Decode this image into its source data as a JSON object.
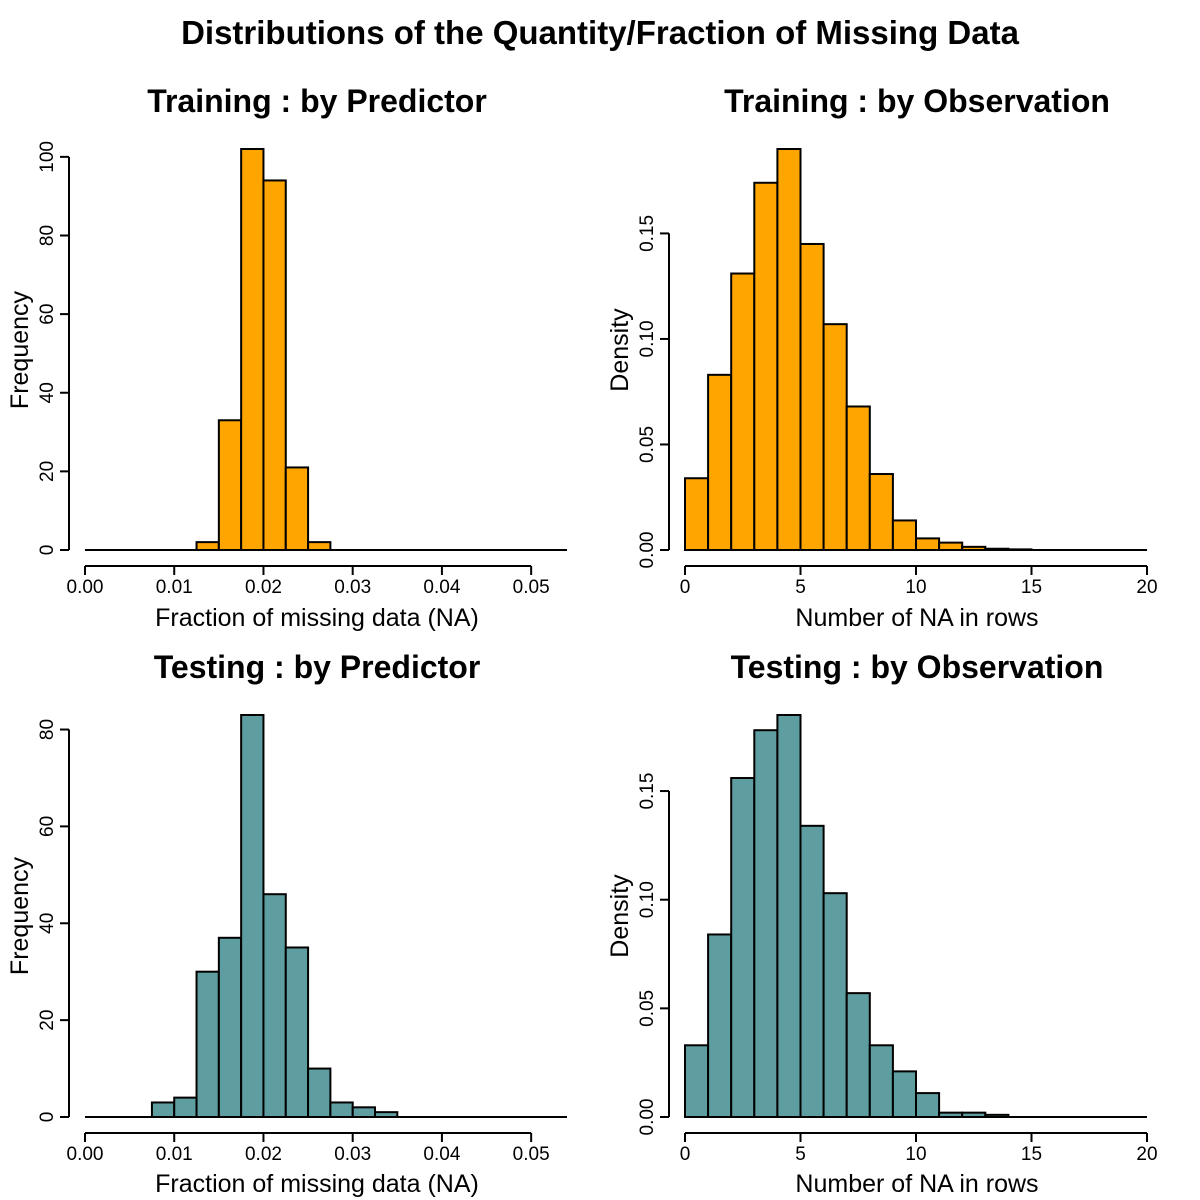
{
  "figure": {
    "title": "Distributions of the Quantity/Fraction of Missing Data"
  },
  "colors": {
    "training": "#FFA500",
    "testing": "#5F9EA0",
    "outline": "#000000"
  },
  "chart_data": [
    {
      "type": "bar",
      "panel": "top-left",
      "title": "Training : by Predictor",
      "xlabel": "Fraction of missing data (NA)",
      "ylabel": "Frequency",
      "xlim": [
        0,
        0.052
      ],
      "ylim": [
        0,
        102
      ],
      "xticks": [
        0.0,
        0.01,
        0.02,
        0.03,
        0.04,
        0.05
      ],
      "xtick_labels": [
        "0.00",
        "0.01",
        "0.02",
        "0.03",
        "0.04",
        "0.05"
      ],
      "yticks": [
        0,
        20,
        40,
        60,
        80,
        100
      ],
      "ytick_labels": [
        "0",
        "20",
        "40",
        "60",
        "80",
        "100"
      ],
      "bin_edges": [
        0.0,
        0.0025,
        0.005,
        0.0075,
        0.01,
        0.0125,
        0.015,
        0.0175,
        0.02,
        0.0225,
        0.025,
        0.0275,
        0.03,
        0.0325,
        0.035,
        0.0375,
        0.04,
        0.0425,
        0.045,
        0.0475,
        0.05,
        0.0525
      ],
      "values": [
        0,
        0,
        0,
        0,
        0,
        2,
        33,
        102,
        94,
        21,
        2,
        0,
        0,
        0,
        0,
        0,
        0,
        0,
        0,
        0,
        0
      ],
      "color": "training"
    },
    {
      "type": "bar",
      "panel": "top-right",
      "title": "Training : by Observation",
      "xlabel": "Number of NA in rows",
      "ylabel": "Density",
      "xlim": [
        0,
        20
      ],
      "ylim": [
        0,
        0.19
      ],
      "xticks": [
        0,
        5,
        10,
        15,
        20
      ],
      "xtick_labels": [
        "0",
        "5",
        "10",
        "15",
        "20"
      ],
      "yticks": [
        0.0,
        0.05,
        0.1,
        0.15
      ],
      "ytick_labels": [
        "0.00",
        "0.05",
        "0.10",
        "0.15"
      ],
      "bin_edges": [
        0,
        1,
        2,
        3,
        4,
        5,
        6,
        7,
        8,
        9,
        10,
        11,
        12,
        13,
        14,
        15,
        16,
        17,
        18,
        19,
        20
      ],
      "values": [
        0.034,
        0.083,
        0.131,
        0.174,
        0.19,
        0.145,
        0.107,
        0.068,
        0.036,
        0.014,
        0.0055,
        0.0035,
        0.0015,
        0.0006,
        0.0003,
        0,
        0,
        0,
        0,
        0
      ],
      "color": "training"
    },
    {
      "type": "bar",
      "panel": "bottom-left",
      "title": "Testing : by Predictor",
      "xlabel": "Fraction of missing data (NA)",
      "ylabel": "Frequency",
      "xlim": [
        0,
        0.052
      ],
      "ylim": [
        0,
        83
      ],
      "xticks": [
        0.0,
        0.01,
        0.02,
        0.03,
        0.04,
        0.05
      ],
      "xtick_labels": [
        "0.00",
        "0.01",
        "0.02",
        "0.03",
        "0.04",
        "0.05"
      ],
      "yticks": [
        0,
        20,
        40,
        60,
        80
      ],
      "ytick_labels": [
        "0",
        "20",
        "40",
        "60",
        "80"
      ],
      "bin_edges": [
        0.0,
        0.0025,
        0.005,
        0.0075,
        0.01,
        0.0125,
        0.015,
        0.0175,
        0.02,
        0.0225,
        0.025,
        0.0275,
        0.03,
        0.0325,
        0.035,
        0.0375,
        0.04,
        0.0425,
        0.045,
        0.0475,
        0.05,
        0.0525
      ],
      "values": [
        0,
        0,
        0,
        3,
        4,
        30,
        37,
        83,
        46,
        35,
        10,
        3,
        2,
        1,
        0,
        0,
        0,
        0,
        0,
        0,
        0
      ],
      "color": "testing"
    },
    {
      "type": "bar",
      "panel": "bottom-right",
      "title": "Testing : by Observation",
      "xlabel": "Number of NA in rows",
      "ylabel": "Density",
      "xlim": [
        0,
        20
      ],
      "ylim": [
        0,
        0.185
      ],
      "xticks": [
        0,
        5,
        10,
        15,
        20
      ],
      "xtick_labels": [
        "0",
        "5",
        "10",
        "15",
        "20"
      ],
      "yticks": [
        0.0,
        0.05,
        0.1,
        0.15
      ],
      "ytick_labels": [
        "0.00",
        "0.05",
        "0.10",
        "0.15"
      ],
      "bin_edges": [
        0,
        1,
        2,
        3,
        4,
        5,
        6,
        7,
        8,
        9,
        10,
        11,
        12,
        13,
        14,
        15,
        16,
        17,
        18,
        19,
        20
      ],
      "values": [
        0.033,
        0.084,
        0.156,
        0.178,
        0.185,
        0.134,
        0.103,
        0.057,
        0.033,
        0.021,
        0.011,
        0.002,
        0.002,
        0.001,
        0,
        0,
        0,
        0,
        0,
        0
      ],
      "color": "testing"
    }
  ]
}
